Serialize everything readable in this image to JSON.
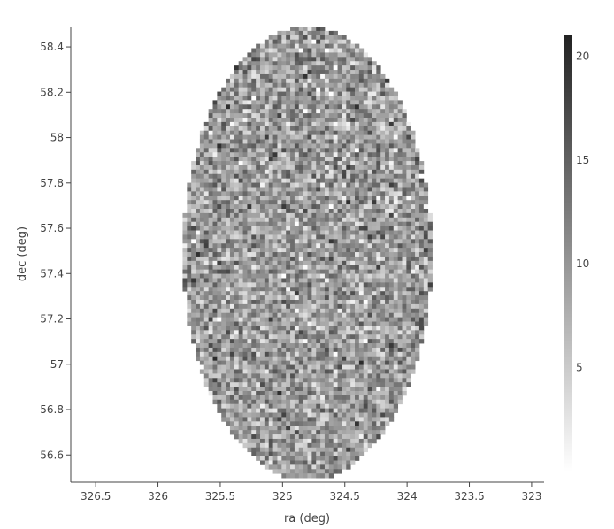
{
  "chart_data": {
    "type": "heatmap",
    "title": "",
    "xlabel": "ra (deg)",
    "ylabel": "dec (deg)",
    "x_axis_reversed": true,
    "xlim": [
      326.7,
      322.9
    ],
    "ylim": [
      56.48,
      58.49
    ],
    "x_ticks": [
      "326.5",
      "326",
      "325.5",
      "325",
      "324.5",
      "324",
      "323.5",
      "323"
    ],
    "y_ticks": [
      "56.6",
      "56.8",
      "57",
      "57.2",
      "57.4",
      "57.6",
      "57.8",
      "58",
      "58.2",
      "58.4"
    ],
    "footprint": {
      "shape": "circle",
      "center_ra": 324.8,
      "center_dec": 57.49,
      "radius_deg": 1.0
    },
    "colorscale": {
      "name": "greys",
      "min": 0,
      "max": 21,
      "low_color": "#ffffff",
      "high_color": "#222222",
      "ticks": [
        "5",
        "10",
        "15",
        "20"
      ]
    },
    "value_distribution": {
      "mean": 9.5,
      "typical_range": [
        3,
        18
      ]
    },
    "bins": {
      "nx": 110,
      "ny": 105
    }
  }
}
